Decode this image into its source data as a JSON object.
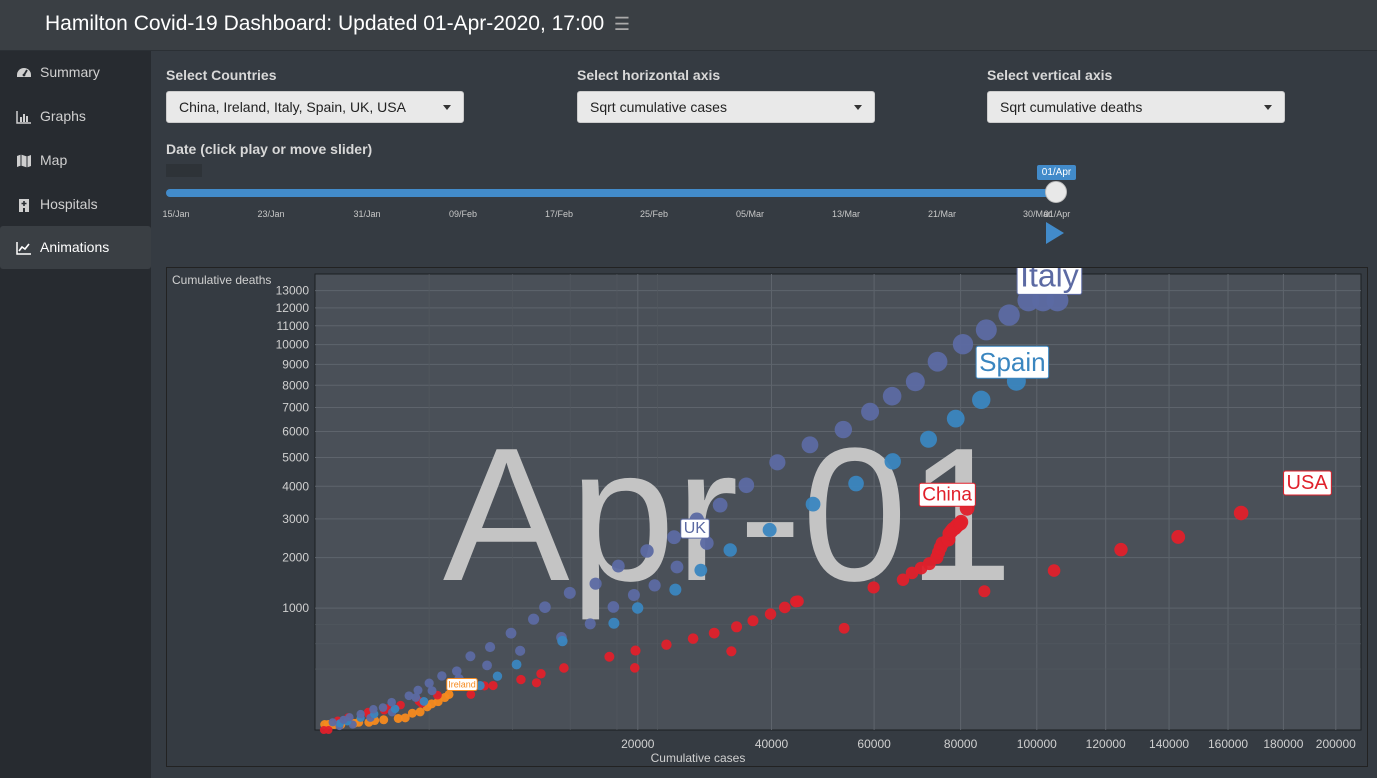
{
  "header": {
    "title": "Hamilton Covid-19 Dashboard: Updated 01-Apr-2020, 17:00",
    "toggle_icon": "hamburger-icon"
  },
  "sidebar": {
    "items": [
      {
        "label": "Summary",
        "icon": "dashboard-gauge-icon",
        "active": false
      },
      {
        "label": "Graphs",
        "icon": "line-chart-icon",
        "active": false
      },
      {
        "label": "Map",
        "icon": "map-icon",
        "active": false
      },
      {
        "label": "Hospitals",
        "icon": "hospital-icon",
        "active": false
      },
      {
        "label": "Animations",
        "icon": "area-chart-icon",
        "active": true
      }
    ]
  },
  "controls": {
    "countries": {
      "label": "Select Countries",
      "value": "China, Ireland, Italy, Spain, UK, USA"
    },
    "haxis": {
      "label": "Select horizontal axis",
      "value": "Sqrt cumulative cases"
    },
    "vaxis": {
      "label": "Select vertical axis",
      "value": "Sqrt cumulative deaths"
    },
    "date": {
      "label": "Date (click play or move slider)",
      "current": "01/Apr",
      "progress": 1.0,
      "ticks": [
        "15/Jan",
        "23/Jan",
        "31/Jan",
        "09/Feb",
        "17/Feb",
        "25/Feb",
        "05/Mar",
        "13/Mar",
        "21/Mar",
        "30/Mar",
        "01/Apr"
      ]
    }
  },
  "colors": {
    "Italy": "#5c6aa3",
    "Spain": "#3a86c0",
    "China": "#e0202b",
    "USA": "#e0202b",
    "UK": "#5c6aa3",
    "Ireland": "#f58a1f",
    "accent": "#428bca"
  },
  "chart_data": {
    "type": "scatter",
    "title": "Apr-01",
    "xlabel": "Cumulative cases",
    "ylabel": "Cumulative deaths",
    "x_scale": "sqrt",
    "y_scale": "sqrt",
    "x_ticks": [
      20000,
      40000,
      60000,
      80000,
      100000,
      120000,
      140000,
      160000,
      180000,
      200000
    ],
    "y_ticks": [
      1000,
      2000,
      3000,
      4000,
      5000,
      6000,
      7000,
      8000,
      9000,
      10000,
      11000,
      12000,
      13000
    ],
    "series": [
      {
        "name": "Italy",
        "points": [
          [
            60,
            4
          ],
          [
            157,
            7
          ],
          [
            229,
            11
          ],
          [
            400,
            17
          ],
          [
            655,
            29
          ],
          [
            888,
            34
          ],
          [
            1128,
            52
          ],
          [
            1694,
            79
          ],
          [
            2036,
            107
          ],
          [
            2502,
            148
          ],
          [
            3089,
            197
          ],
          [
            3858,
            233
          ],
          [
            4636,
            366
          ],
          [
            5883,
            463
          ],
          [
            7375,
            631
          ],
          [
            9172,
            827
          ],
          [
            10149,
            1016
          ],
          [
            12462,
            1266
          ],
          [
            15113,
            1441
          ],
          [
            17660,
            1809
          ],
          [
            21157,
            2158
          ],
          [
            24747,
            2503
          ],
          [
            27980,
            2978
          ],
          [
            31506,
            3405
          ],
          [
            35713,
            4032
          ],
          [
            41035,
            4825
          ],
          [
            47021,
            5476
          ],
          [
            53578,
            6077
          ],
          [
            59138,
            6820
          ],
          [
            63927,
            7503
          ],
          [
            69176,
            8165
          ],
          [
            74386,
            9134
          ],
          [
            80589,
            10023
          ],
          [
            86498,
            10779
          ],
          [
            92472,
            11591
          ],
          [
            97689,
            12428
          ],
          [
            101739,
            12428
          ],
          [
            105792,
            12428
          ]
        ]
      },
      {
        "name": "Spain",
        "points": [
          [
            120,
            3
          ],
          [
            200,
            5
          ],
          [
            400,
            10
          ],
          [
            674,
            17
          ],
          [
            1231,
            30
          ],
          [
            2277,
            55
          ],
          [
            5232,
            133
          ],
          [
            6391,
            195
          ],
          [
            7798,
            289
          ],
          [
            11748,
            533
          ],
          [
            17147,
            767
          ],
          [
            19980,
            1002
          ],
          [
            24926,
            1326
          ],
          [
            28572,
            1720
          ],
          [
            33089,
            2182
          ],
          [
            39673,
            2696
          ],
          [
            47610,
            3434
          ],
          [
            56188,
            4089
          ],
          [
            64059,
            4858
          ],
          [
            72248,
            5690
          ],
          [
            78797,
            6528
          ],
          [
            85195,
            7340
          ],
          [
            94417,
            8189
          ]
        ]
      },
      {
        "name": "China",
        "points": [
          [
            548,
            17
          ],
          [
            643,
            18
          ],
          [
            920,
            26
          ],
          [
            1406,
            42
          ],
          [
            2075,
            56
          ],
          [
            2877,
            82
          ],
          [
            5509,
            131
          ],
          [
            6087,
            133
          ],
          [
            8141,
            171
          ],
          [
            9802,
            213
          ],
          [
            11891,
            259
          ],
          [
            16630,
            361
          ],
          [
            19716,
            425
          ],
          [
            23707,
            490
          ],
          [
            27440,
            562
          ],
          [
            30587,
            632
          ],
          [
            34110,
            717
          ],
          [
            36814,
            803
          ],
          [
            39829,
            904
          ],
          [
            42354,
            1011
          ],
          [
            44386,
            1111
          ],
          [
            44759,
            1116
          ],
          [
            59895,
            1368
          ],
          [
            66358,
            1520
          ],
          [
            68413,
            1662
          ],
          [
            70513,
            1765
          ],
          [
            72434,
            1863
          ],
          [
            74211,
            2002
          ],
          [
            74619,
            2121
          ],
          [
            75077,
            2239
          ],
          [
            75550,
            2348
          ],
          [
            77001,
            2443
          ],
          [
            77022,
            2445
          ],
          [
            77241,
            2595
          ],
          [
            77754,
            2665
          ],
          [
            78166,
            2717
          ],
          [
            78600,
            2744
          ],
          [
            78928,
            2788
          ],
          [
            79356,
            2835
          ],
          [
            79932,
            2870
          ],
          [
            80136,
            2912
          ],
          [
            81620,
            3309
          ]
        ]
      },
      {
        "name": "USA",
        "points": [
          [
            15,
            0
          ],
          [
            35,
            0
          ],
          [
            100,
            6
          ],
          [
            213,
            11
          ],
          [
            541,
            22
          ],
          [
            1000,
            31
          ],
          [
            2179,
            48
          ],
          [
            4661,
            85
          ],
          [
            9415,
            150
          ],
          [
            19624,
            260
          ],
          [
            33272,
            417
          ],
          [
            53740,
            697
          ],
          [
            85996,
            1296
          ],
          [
            104837,
            1711
          ],
          [
            124686,
            2191
          ],
          [
            143025,
            2509
          ],
          [
            164620,
            3170
          ]
        ]
      },
      {
        "name": "UK",
        "points": [
          [
            115,
            1
          ],
          [
            273,
            2
          ],
          [
            590,
            10
          ],
          [
            1140,
            21
          ],
          [
            1950,
            71
          ],
          [
            2630,
            104
          ],
          [
            3983,
            177
          ],
          [
            5683,
            281
          ],
          [
            8077,
            422
          ],
          [
            11658,
            578
          ],
          [
            14543,
            759
          ],
          [
            17089,
            1019
          ],
          [
            19522,
            1228
          ],
          [
            22141,
            1408
          ],
          [
            25150,
            1789
          ],
          [
            29474,
            2352
          ]
        ]
      },
      {
        "name": "Ireland",
        "points": [
          [
            18,
            2
          ],
          [
            34,
            2
          ],
          [
            70,
            2
          ],
          [
            129,
            2
          ],
          [
            292,
            3
          ],
          [
            366,
            4
          ],
          [
            557,
            4
          ],
          [
            683,
            6
          ],
          [
            906,
            7
          ],
          [
            1329,
            9
          ],
          [
            1564,
            10
          ],
          [
            1819,
            19
          ],
          [
            2121,
            22
          ],
          [
            2415,
            36
          ],
          [
            2615,
            46
          ],
          [
            2910,
            54
          ],
          [
            3235,
            71
          ],
          [
            3447,
            85
          ]
        ]
      }
    ],
    "labels": [
      {
        "text": "Italy",
        "series": "Italy"
      },
      {
        "text": "Spain",
        "series": "Spain"
      },
      {
        "text": "China",
        "series": "China"
      },
      {
        "text": "USA",
        "series": "USA"
      },
      {
        "text": "UK",
        "series": "UK"
      },
      {
        "text": "Ireland",
        "series": "Ireland"
      }
    ],
    "grid": true
  }
}
